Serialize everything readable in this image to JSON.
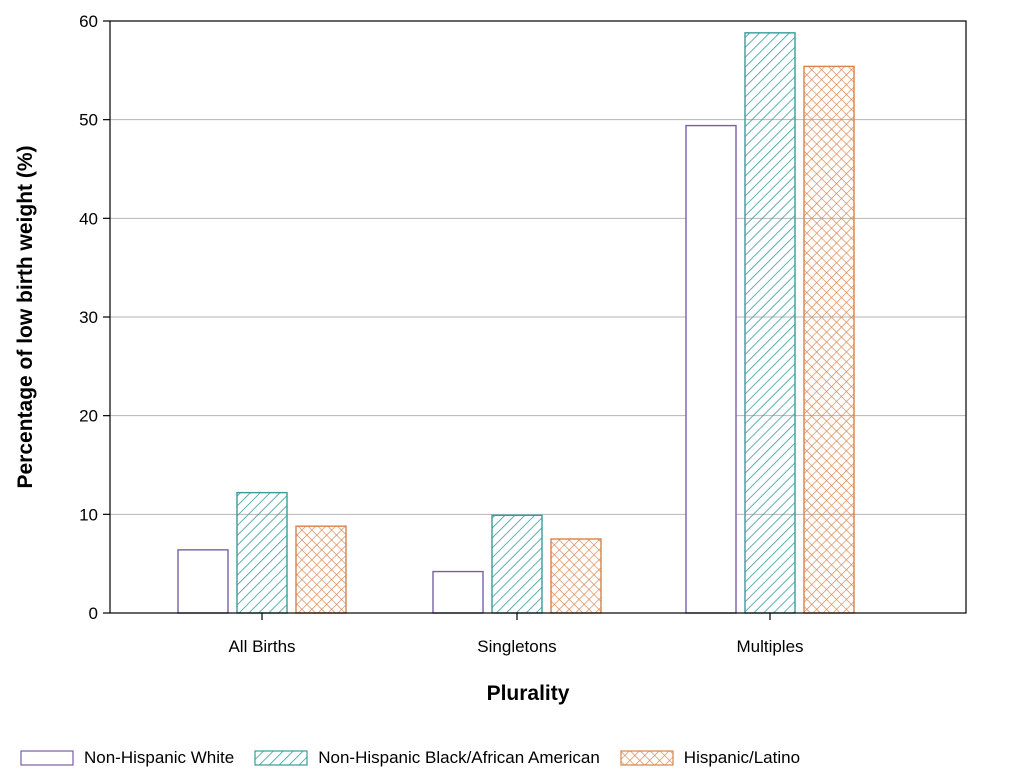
{
  "chart_data": {
    "type": "bar",
    "categories": [
      "All Births",
      "Singletons",
      "Multiples"
    ],
    "series": [
      {
        "name": "Non-Hispanic White",
        "values": [
          6.4,
          4.2,
          49.4
        ],
        "color": "#7b5ea7",
        "pattern": "none"
      },
      {
        "name": "Non-Hispanic Black/African American",
        "values": [
          12.2,
          9.9,
          58.8
        ],
        "color": "#3a9b9b",
        "pattern": "diagonal-hatch"
      },
      {
        "name": "Hispanic/Latino",
        "values": [
          8.8,
          7.5,
          55.4
        ],
        "color": "#d9824a",
        "pattern": "crosshatch"
      }
    ],
    "xlabel": "Plurality",
    "ylabel": "Percentage of low birth weight (%)",
    "ylim": [
      0,
      60
    ],
    "yticks": [
      "0",
      "10",
      "20",
      "30",
      "40",
      "50",
      "60"
    ],
    "grid": true,
    "legend_position": "bottom"
  }
}
